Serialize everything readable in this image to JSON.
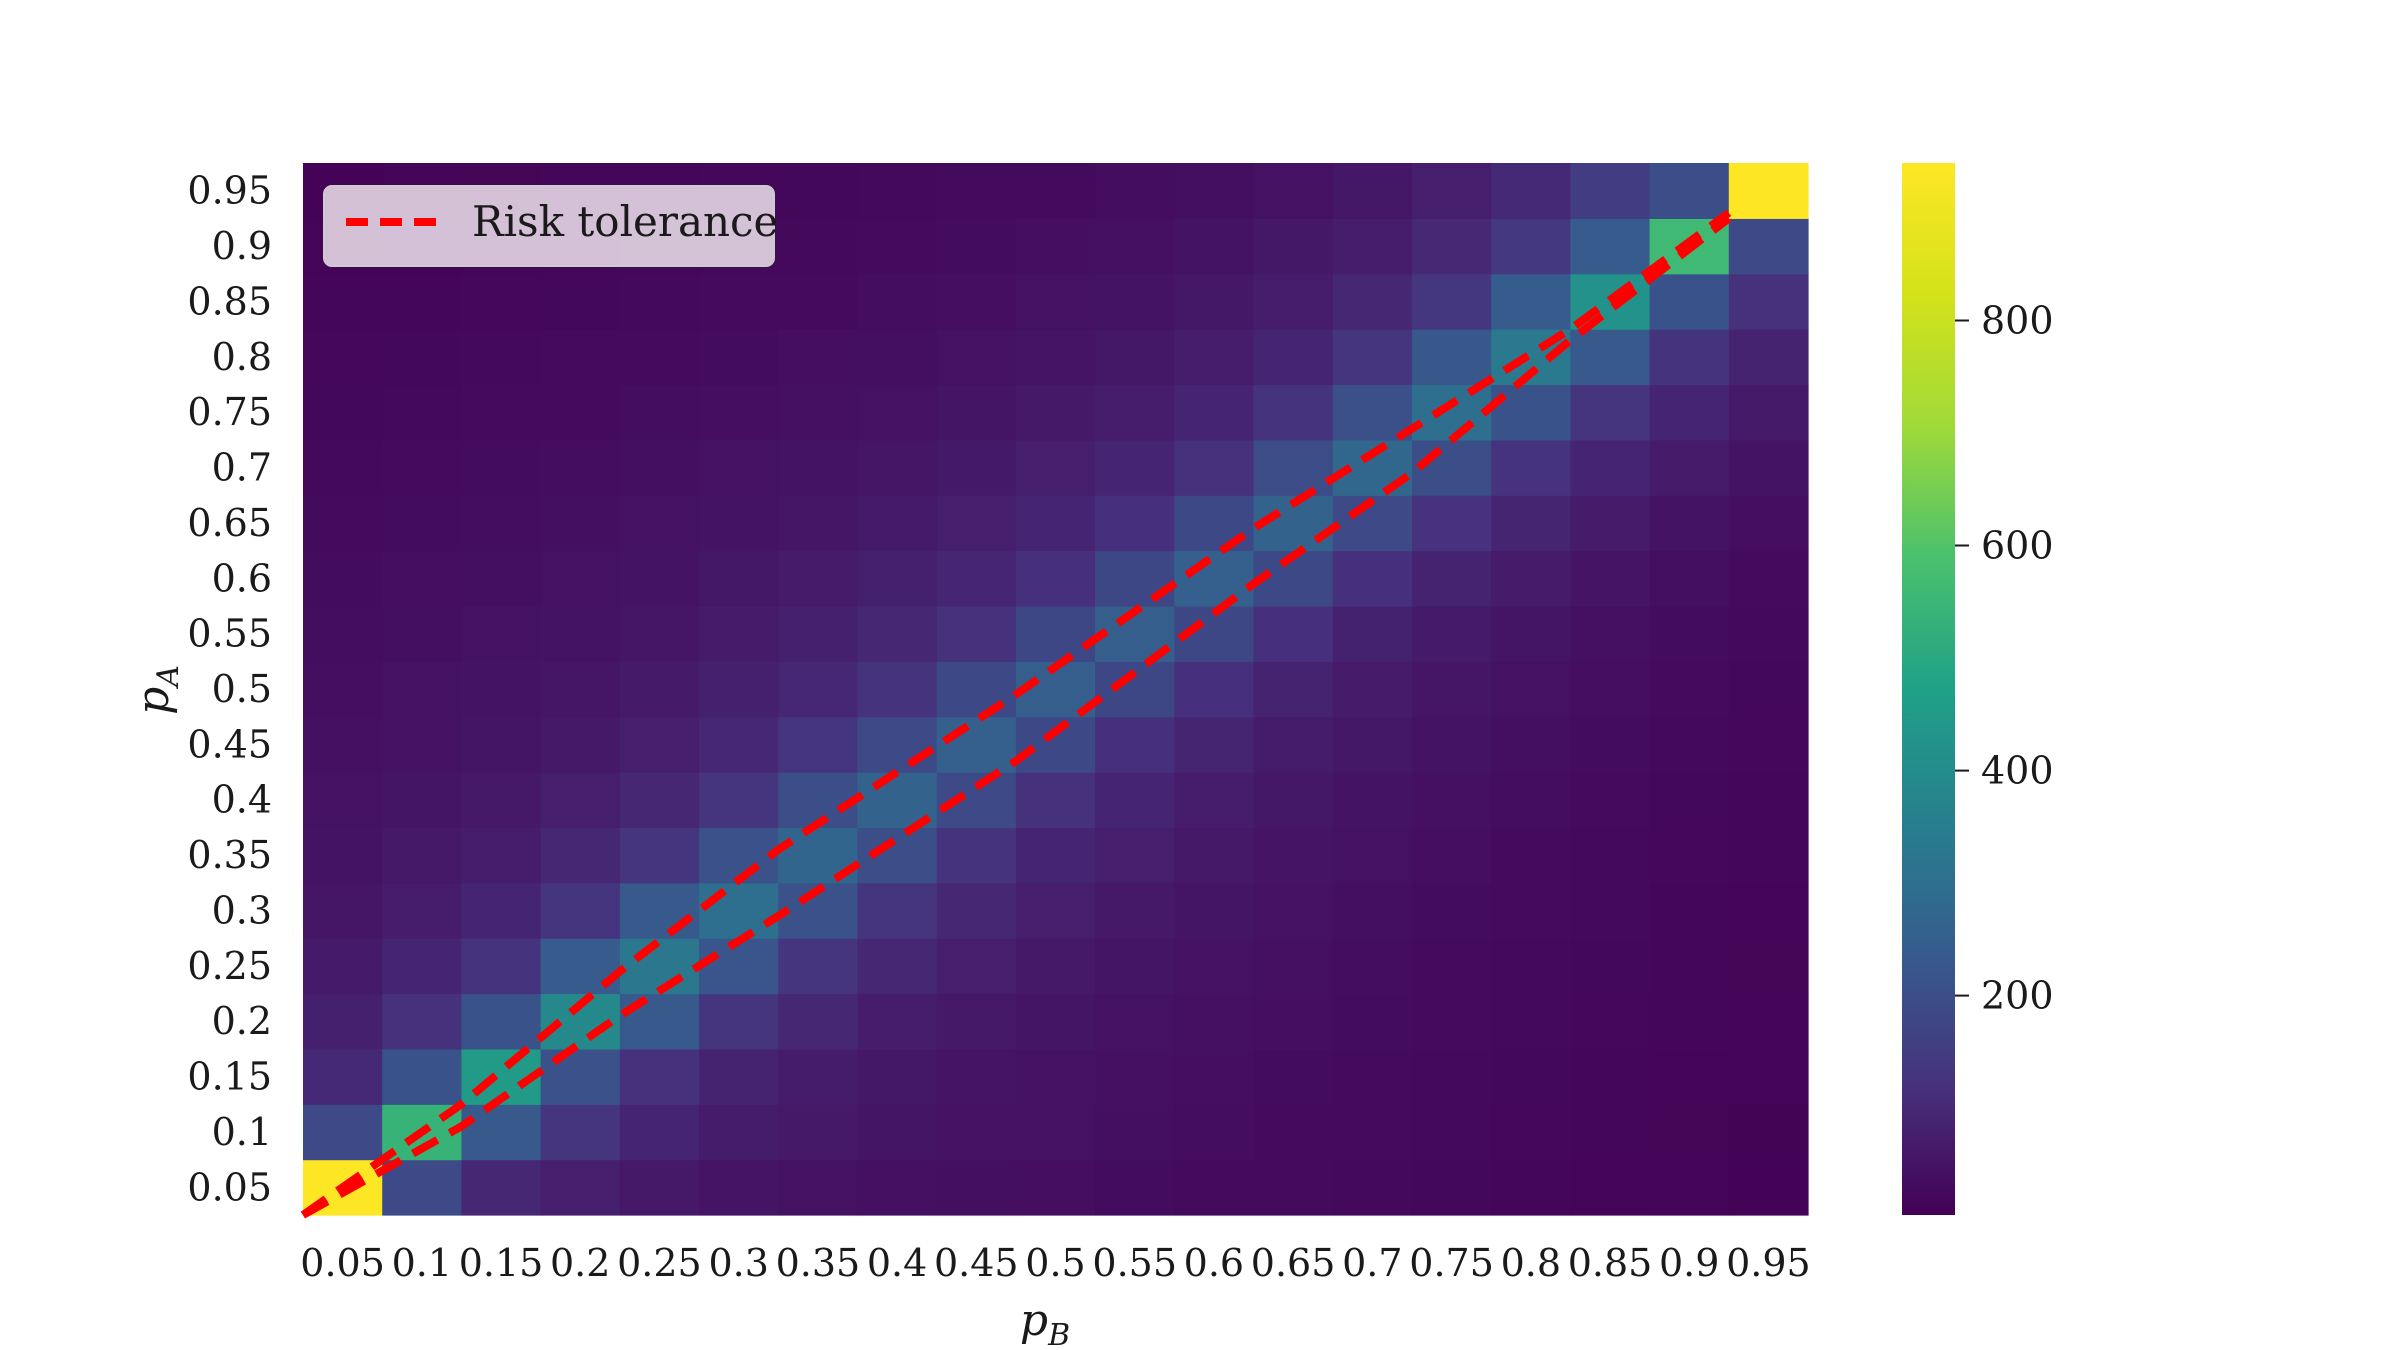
{
  "chart_data": {
    "type": "heatmap",
    "xlabel": "p",
    "xlabel_sub": "B",
    "ylabel": "p",
    "ylabel_sub": "A",
    "x_categories": [
      "0.05",
      "0.1",
      "0.15",
      "0.2",
      "0.25",
      "0.3",
      "0.35",
      "0.4",
      "0.45",
      "0.5",
      "0.55",
      "0.6",
      "0.65",
      "0.7",
      "0.75",
      "0.8",
      "0.85",
      "0.9",
      "0.95"
    ],
    "y_categories": [
      "0.05",
      "0.1",
      "0.15",
      "0.2",
      "0.25",
      "0.3",
      "0.35",
      "0.4",
      "0.45",
      "0.5",
      "0.55",
      "0.6",
      "0.65",
      "0.7",
      "0.75",
      "0.8",
      "0.85",
      "0.9",
      "0.95"
    ],
    "colormap": "viridis",
    "colorbar": {
      "min": 5,
      "max": 940,
      "ticks": [
        200,
        400,
        600,
        800
      ]
    },
    "grid": false,
    "legend": {
      "placement": "top-left",
      "entries": [
        {
          "label": "Risk tolerance",
          "style": "dashed",
          "color": "#ff0000"
        }
      ]
    },
    "overlay_lines": [
      {
        "name": "upper",
        "points": [
          [
            0.05,
            0.05
          ],
          [
            0.15,
            0.15
          ],
          [
            0.25,
            0.27
          ],
          [
            0.35,
            0.38
          ],
          [
            0.5,
            0.52
          ],
          [
            0.65,
            0.67
          ],
          [
            0.75,
            0.76
          ],
          [
            0.85,
            0.85
          ],
          [
            0.95,
            0.955
          ]
        ]
      },
      {
        "name": "lower",
        "points": [
          [
            0.05,
            0.05
          ],
          [
            0.15,
            0.13
          ],
          [
            0.25,
            0.23
          ],
          [
            0.35,
            0.32
          ],
          [
            0.5,
            0.46
          ],
          [
            0.65,
            0.62
          ],
          [
            0.75,
            0.72
          ],
          [
            0.85,
            0.84
          ],
          [
            0.95,
            0.95
          ]
        ]
      }
    ],
    "values": [
      [
        940,
        190,
        95,
        75,
        60,
        50,
        45,
        40,
        38,
        35,
        32,
        30,
        28,
        25,
        22,
        18,
        15,
        12,
        10
      ],
      [
        190,
        540,
        230,
        130,
        90,
        70,
        60,
        52,
        46,
        42,
        38,
        34,
        30,
        27,
        23,
        20,
        17,
        14,
        11
      ],
      [
        100,
        215,
        450,
        210,
        120,
        85,
        70,
        58,
        50,
        45,
        40,
        36,
        32,
        28,
        25,
        21,
        18,
        15,
        12
      ],
      [
        80,
        120,
        215,
        390,
        230,
        130,
        95,
        72,
        60,
        52,
        46,
        41,
        36,
        31,
        27,
        23,
        19,
        16,
        13
      ],
      [
        65,
        90,
        125,
        235,
        330,
        220,
        130,
        95,
        75,
        62,
        53,
        46,
        40,
        34,
        29,
        25,
        21,
        17,
        14
      ],
      [
        55,
        72,
        90,
        130,
        230,
        300,
        210,
        130,
        95,
        75,
        62,
        53,
        45,
        38,
        32,
        27,
        23,
        18,
        15
      ],
      [
        48,
        60,
        72,
        95,
        130,
        210,
        270,
        200,
        125,
        92,
        74,
        61,
        51,
        43,
        36,
        30,
        25,
        20,
        16
      ],
      [
        44,
        52,
        60,
        74,
        95,
        130,
        200,
        260,
        190,
        120,
        90,
        72,
        59,
        49,
        41,
        34,
        28,
        22,
        18
      ],
      [
        40,
        46,
        52,
        62,
        76,
        96,
        128,
        190,
        250,
        185,
        118,
        88,
        70,
        57,
        47,
        39,
        32,
        25,
        20
      ],
      [
        37,
        42,
        47,
        54,
        64,
        78,
        96,
        124,
        185,
        245,
        180,
        115,
        86,
        67,
        54,
        44,
        36,
        28,
        22
      ],
      [
        34,
        38,
        42,
        48,
        56,
        66,
        78,
        95,
        120,
        180,
        245,
        180,
        115,
        84,
        65,
        52,
        41,
        32,
        25
      ],
      [
        31,
        35,
        38,
        43,
        49,
        57,
        66,
        78,
        94,
        118,
        180,
        250,
        185,
        118,
        85,
        66,
        51,
        39,
        30
      ],
      [
        28,
        31,
        34,
        38,
        43,
        49,
        56,
        65,
        76,
        92,
        118,
        185,
        260,
        190,
        122,
        88,
        66,
        49,
        37
      ],
      [
        25,
        28,
        31,
        34,
        38,
        43,
        48,
        55,
        63,
        74,
        92,
        120,
        195,
        275,
        200,
        126,
        90,
        66,
        48
      ],
      [
        22,
        24,
        27,
        30,
        33,
        37,
        41,
        46,
        52,
        60,
        72,
        92,
        125,
        205,
        300,
        215,
        130,
        90,
        64
      ],
      [
        19,
        21,
        23,
        26,
        29,
        32,
        35,
        39,
        44,
        50,
        58,
        72,
        92,
        130,
        225,
        335,
        230,
        125,
        85
      ],
      [
        16,
        18,
        20,
        22,
        25,
        27,
        30,
        33,
        37,
        42,
        48,
        58,
        72,
        95,
        135,
        240,
        420,
        215,
        120
      ],
      [
        13,
        15,
        17,
        19,
        21,
        23,
        25,
        28,
        31,
        35,
        40,
        47,
        57,
        72,
        98,
        140,
        240,
        560,
        190
      ],
      [
        10,
        12,
        14,
        16,
        18,
        20,
        22,
        24,
        27,
        30,
        34,
        39,
        46,
        57,
        74,
        100,
        150,
        200,
        940
      ]
    ]
  }
}
